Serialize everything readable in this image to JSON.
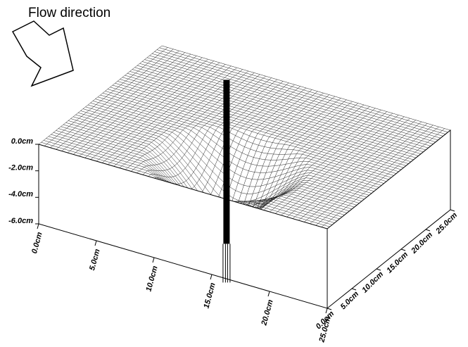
{
  "chart_data": {
    "type": "surface3d",
    "annotation": "Flow direction",
    "xlim": [
      0,
      25
    ],
    "xticks": [
      {
        "value": 0,
        "label": "0.0cm"
      },
      {
        "value": 5,
        "label": "5.0cm"
      },
      {
        "value": 10,
        "label": "10.0cm"
      },
      {
        "value": 15,
        "label": "15.0cm"
      },
      {
        "value": 20,
        "label": "20.0cm"
      },
      {
        "value": 25,
        "label": "25.0cm"
      }
    ],
    "ylim": [
      0,
      25
    ],
    "yticks": [
      {
        "value": 0,
        "label": "0.0cm"
      },
      {
        "value": 5,
        "label": "5.0cm"
      },
      {
        "value": 10,
        "label": "10.0cm"
      },
      {
        "value": 15,
        "label": "15.0cm"
      },
      {
        "value": 20,
        "label": "20.0cm"
      },
      {
        "value": 25,
        "label": "25.0cm"
      }
    ],
    "zlim": [
      -6,
      0
    ],
    "zticks": [
      {
        "value": 0,
        "label": "0.0cm"
      },
      {
        "value": -2,
        "label": "-2.0cm"
      },
      {
        "value": -4,
        "label": "-4.0cm"
      },
      {
        "value": -6,
        "label": "-6.0cm"
      }
    ]
  }
}
